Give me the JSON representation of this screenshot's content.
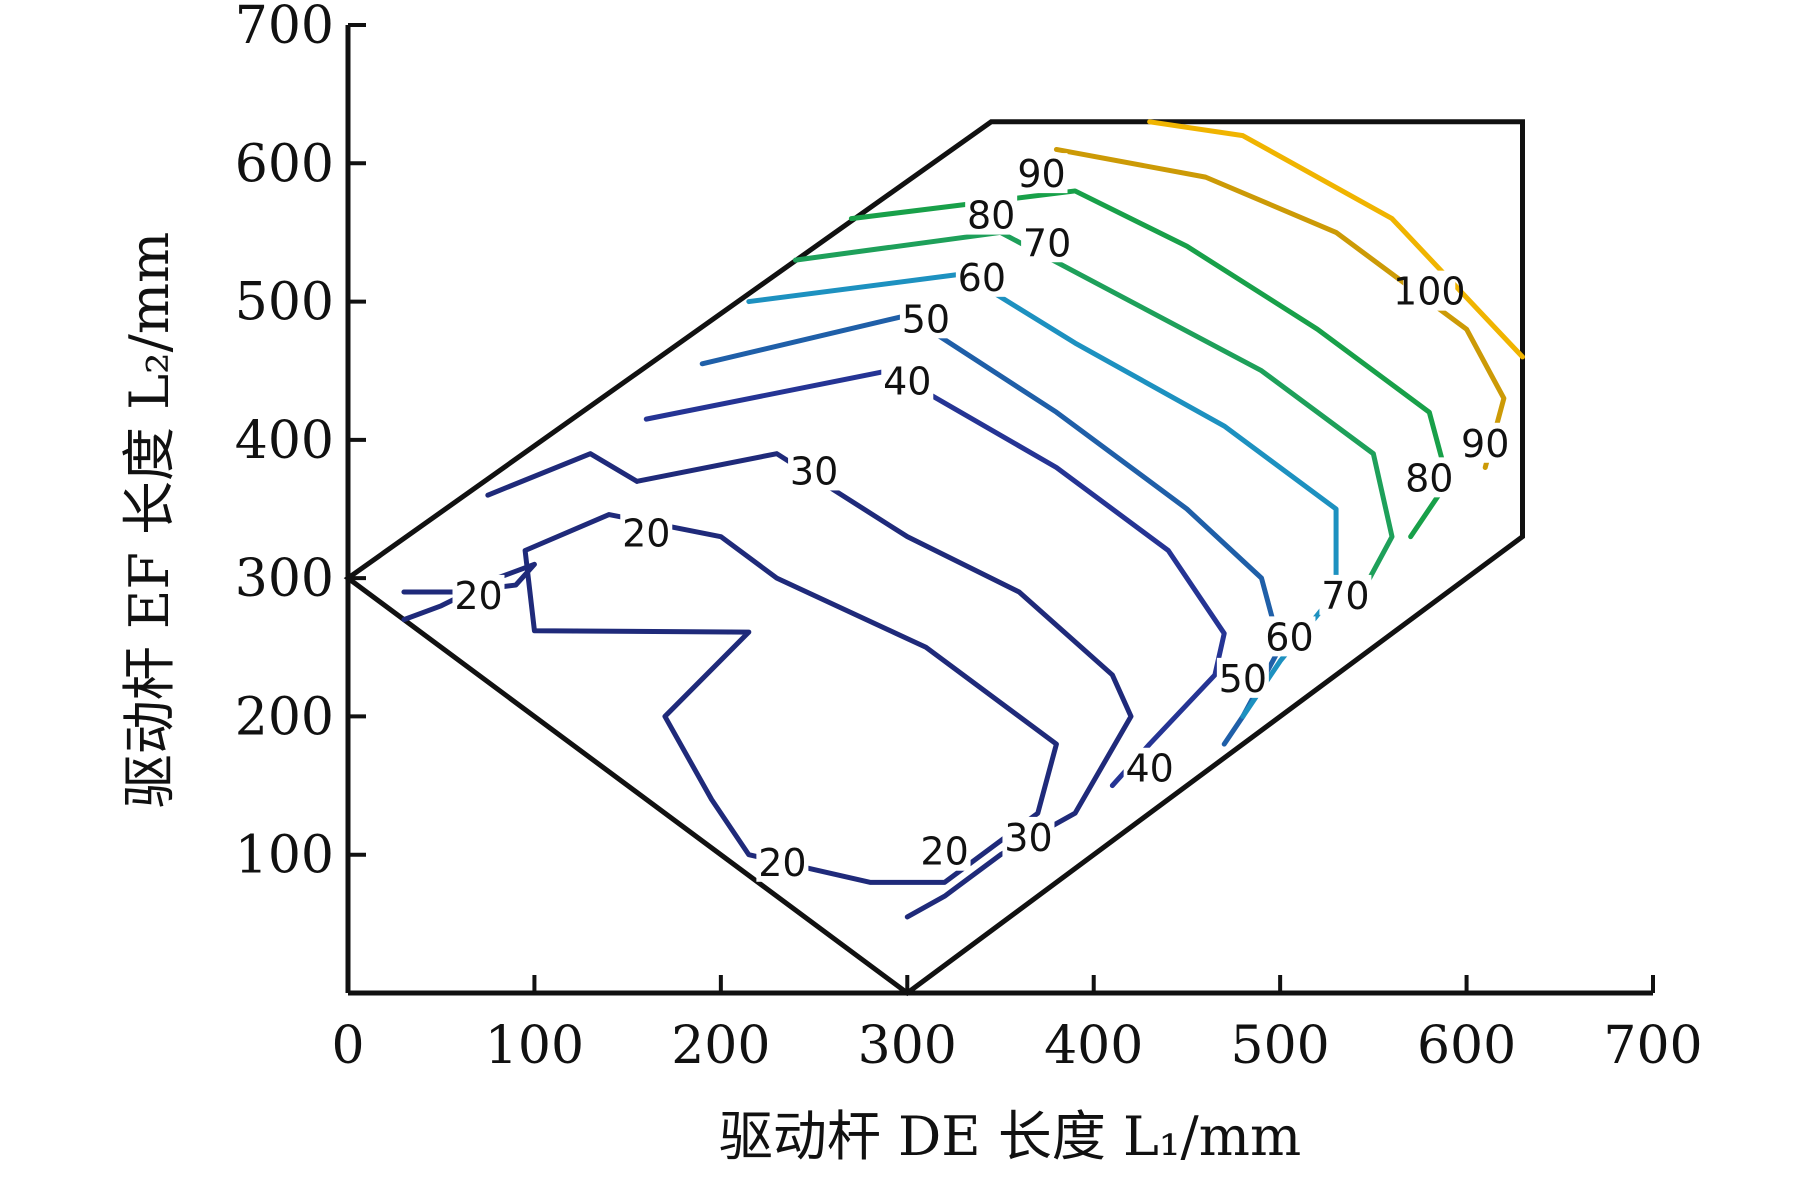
{
  "chart_data": {
    "type": "contour",
    "xlabel": "驱动杆 DE 长度 L₁/mm",
    "ylabel": "驱动杆 EF 长度 L₂/mm",
    "xlim": [
      0,
      700
    ],
    "ylim": [
      0,
      700
    ],
    "x_ticks": [
      "0",
      "100",
      "200",
      "300",
      "400",
      "500",
      "600",
      "700"
    ],
    "y_ticks": [
      "100",
      "200",
      "300",
      "400",
      "500",
      "600",
      "700"
    ],
    "grid": false,
    "legend": "none",
    "feasible_region": [
      [
        0,
        300
      ],
      [
        345,
        630
      ],
      [
        630,
        630
      ],
      [
        630,
        330
      ],
      [
        300,
        0
      ]
    ],
    "levels": [
      {
        "value": 20,
        "label": "20",
        "color": "#1f2a7a"
      },
      {
        "value": 30,
        "label": "30",
        "color": "#1f2a7a"
      },
      {
        "value": 40,
        "label": "40",
        "color": "#253494"
      },
      {
        "value": 50,
        "label": "50",
        "color": "#1f5fa8"
      },
      {
        "value": 60,
        "label": "60",
        "color": "#1d91c0"
      },
      {
        "value": 70,
        "label": "70",
        "color": "#1ea05a"
      },
      {
        "value": 80,
        "label": "80",
        "color": "#18a049"
      },
      {
        "value": 90,
        "label": "90",
        "color": "#cc9a06"
      },
      {
        "value": 100,
        "label": "100",
        "color": "#f0b400"
      }
    ],
    "contours": [
      {
        "level": 20,
        "points": [
          [
            215,
            261
          ],
          [
            100,
            262
          ],
          [
            95,
            320
          ],
          [
            140,
            346
          ],
          [
            200,
            330
          ],
          [
            230,
            300
          ],
          [
            310,
            250
          ],
          [
            380,
            180
          ],
          [
            370,
            130
          ],
          [
            320,
            80
          ],
          [
            280,
            80
          ],
          [
            215,
            100
          ],
          [
            195,
            140
          ],
          [
            170,
            200
          ],
          [
            215,
            261
          ]
        ]
      },
      {
        "level": 20,
        "points": [
          [
            30,
            270
          ],
          [
            50,
            280
          ],
          [
            80,
            300
          ],
          [
            100,
            310
          ],
          [
            90,
            295
          ],
          [
            60,
            290
          ],
          [
            30,
            290
          ]
        ]
      },
      {
        "level": 30,
        "points": [
          [
            155,
            370
          ],
          [
            230,
            390
          ],
          [
            300,
            330
          ],
          [
            360,
            290
          ],
          [
            410,
            230
          ],
          [
            420,
            200
          ],
          [
            390,
            130
          ],
          [
            350,
            100
          ],
          [
            320,
            70
          ],
          [
            300,
            55
          ]
        ]
      },
      {
        "level": 30,
        "points": [
          [
            75,
            360
          ],
          [
            130,
            390
          ],
          [
            155,
            370
          ]
        ]
      },
      {
        "level": 40,
        "points": [
          [
            160,
            415
          ],
          [
            290,
            450
          ],
          [
            380,
            380
          ],
          [
            440,
            320
          ],
          [
            470,
            260
          ],
          [
            465,
            230
          ],
          [
            430,
            180
          ],
          [
            410,
            150
          ]
        ]
      },
      {
        "level": 50,
        "points": [
          [
            190,
            455
          ],
          [
            300,
            490
          ],
          [
            380,
            420
          ],
          [
            450,
            350
          ],
          [
            490,
            300
          ],
          [
            500,
            250
          ],
          [
            480,
            200
          ],
          [
            470,
            180
          ]
        ]
      },
      {
        "level": 60,
        "points": [
          [
            215,
            500
          ],
          [
            330,
            520
          ],
          [
            390,
            470
          ],
          [
            470,
            410
          ],
          [
            530,
            350
          ],
          [
            530,
            290
          ],
          [
            500,
            240
          ],
          [
            480,
            200
          ]
        ]
      },
      {
        "level": 70,
        "points": [
          [
            240,
            530
          ],
          [
            350,
            550
          ],
          [
            420,
            500
          ],
          [
            490,
            450
          ],
          [
            550,
            390
          ],
          [
            560,
            330
          ],
          [
            540,
            280
          ]
        ]
      },
      {
        "level": 80,
        "points": [
          [
            270,
            560
          ],
          [
            390,
            580
          ],
          [
            450,
            540
          ],
          [
            520,
            480
          ],
          [
            580,
            420
          ],
          [
            590,
            370
          ],
          [
            570,
            330
          ]
        ]
      },
      {
        "level": 90,
        "points": [
          [
            380,
            610
          ],
          [
            460,
            590
          ],
          [
            530,
            550
          ],
          [
            600,
            480
          ],
          [
            620,
            430
          ],
          [
            610,
            380
          ]
        ]
      },
      {
        "level": 100,
        "points": [
          [
            430,
            630
          ],
          [
            480,
            620
          ],
          [
            560,
            560
          ],
          [
            630,
            460
          ]
        ]
      }
    ],
    "annotations": [
      {
        "text": "20",
        "x": 70,
        "y": 285
      },
      {
        "text": "20",
        "x": 160,
        "y": 330
      },
      {
        "text": "20",
        "x": 320,
        "y": 100
      },
      {
        "text": "20",
        "x": 233,
        "y": 92
      },
      {
        "text": "30",
        "x": 250,
        "y": 375
      },
      {
        "text": "30",
        "x": 365,
        "y": 110
      },
      {
        "text": "40",
        "x": 300,
        "y": 440
      },
      {
        "text": "40",
        "x": 430,
        "y": 160
      },
      {
        "text": "50",
        "x": 310,
        "y": 485
      },
      {
        "text": "50",
        "x": 480,
        "y": 225
      },
      {
        "text": "60",
        "x": 340,
        "y": 515
      },
      {
        "text": "60",
        "x": 505,
        "y": 255
      },
      {
        "text": "70",
        "x": 375,
        "y": 540
      },
      {
        "text": "70",
        "x": 535,
        "y": 285
      },
      {
        "text": "80",
        "x": 345,
        "y": 560
      },
      {
        "text": "80",
        "x": 580,
        "y": 370
      },
      {
        "text": "90",
        "x": 372,
        "y": 590
      },
      {
        "text": "90",
        "x": 610,
        "y": 395
      },
      {
        "text": "100",
        "x": 580,
        "y": 505
      }
    ]
  }
}
